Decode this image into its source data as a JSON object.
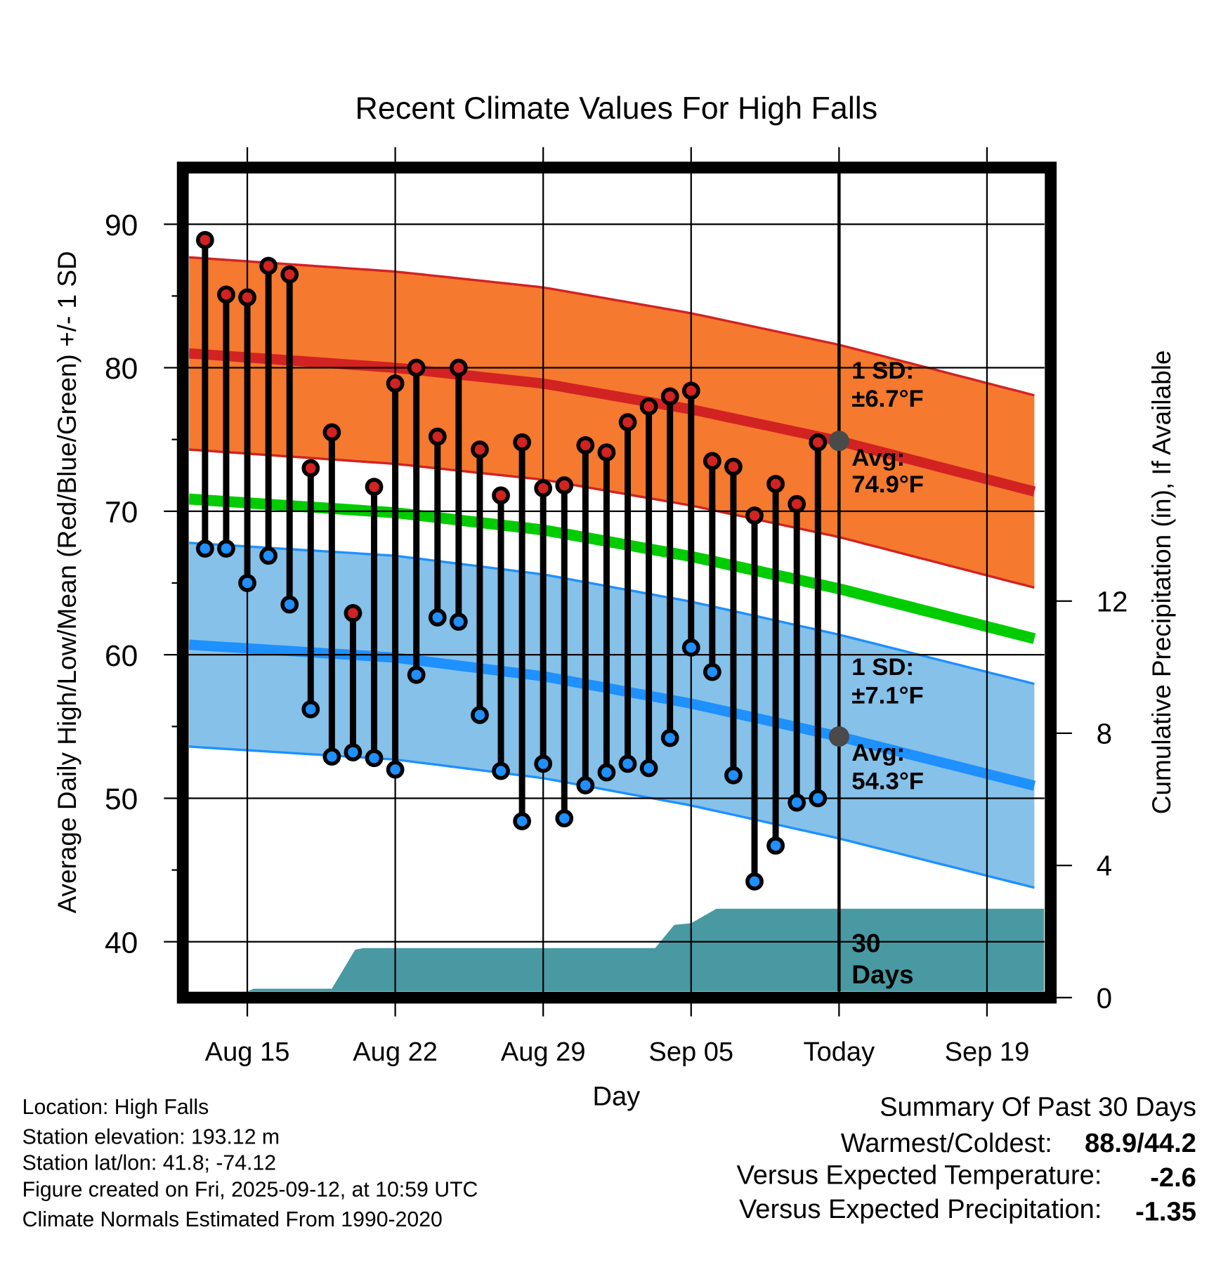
{
  "chart_data": {
    "type": "line",
    "title": "Recent Climate Values For High Falls",
    "xlabel": "Day",
    "ylabel": "Average Daily High/Low/Mean (Red/Blue/Green) +/- 1 SD",
    "ylabel_right": "Cumulative Precipitation (in), If Available",
    "ylim": [
      36.55,
      93
    ],
    "yticks": [
      "90",
      "80",
      "70",
      "60",
      "50",
      "40"
    ],
    "ytick_values": [
      90,
      80,
      70,
      60,
      50,
      40
    ],
    "y2lim": [
      0,
      12
    ],
    "y2ticks": [
      "12",
      "8",
      "4",
      "0"
    ],
    "y2tick_values": [
      12,
      8,
      4,
      0
    ],
    "xticks": [
      {
        "day": 0,
        "label": "Aug 15"
      },
      {
        "day": 7,
        "label": "Aug 22"
      },
      {
        "day": 14,
        "label": "Aug 29"
      },
      {
        "day": 21,
        "label": "Sep 05"
      },
      {
        "day": 28,
        "label": "Today"
      },
      {
        "day": 35,
        "label": "Sep 19"
      }
    ],
    "xrange_days": [
      -2.76,
      37.7
    ],
    "grid": true,
    "today_day": 28,
    "daily": {
      "days": [
        -2,
        -1,
        0,
        1,
        2,
        3,
        4,
        5,
        6,
        7,
        8,
        9,
        10,
        11,
        12,
        13,
        14,
        15,
        16,
        17,
        18,
        19,
        20,
        21,
        22,
        23,
        24,
        25,
        26,
        27
      ],
      "high": [
        88.9,
        85.1,
        84.9,
        87.1,
        86.5,
        73.0,
        75.5,
        62.9,
        71.7,
        78.9,
        80.0,
        75.2,
        80.0,
        74.3,
        71.1,
        74.8,
        71.6,
        71.8,
        74.6,
        74.1,
        76.2,
        77.3,
        78.0,
        78.4,
        73.5,
        73.1,
        69.7,
        71.9,
        70.5,
        74.8
      ],
      "low": [
        67.4,
        67.4,
        65.0,
        66.9,
        63.5,
        56.2,
        52.9,
        53.2,
        52.8,
        52.0,
        58.6,
        62.6,
        62.3,
        55.8,
        51.9,
        48.4,
        52.4,
        48.6,
        50.9,
        51.8,
        52.4,
        52.1,
        54.2,
        60.5,
        58.8,
        51.6,
        44.2,
        46.7,
        49.7,
        50.0
      ]
    },
    "normals": {
      "days": [
        -2.76,
        7,
        14,
        21,
        28,
        37.7
      ],
      "avg_high": [
        81.0,
        80.0,
        78.9,
        77.1,
        74.9,
        71.2
      ],
      "avg_low": [
        60.7,
        59.8,
        58.5,
        56.6,
        54.3,
        50.7
      ],
      "avg_mean": [
        70.85,
        69.9,
        68.7,
        66.85,
        64.6,
        60.95
      ],
      "sd_high": 6.7,
      "sd_low": 7.1
    },
    "precip_cumulative": {
      "days": [
        0,
        0.3,
        4,
        5.1,
        5.5,
        19.3,
        20.2,
        21,
        22.2,
        37.7
      ],
      "inches": [
        0.19,
        0.27,
        0.27,
        1.45,
        1.5,
        1.5,
        2.2,
        2.25,
        2.69,
        2.69
      ]
    },
    "annotations": {
      "high_sd_line1": "1 SD:",
      "high_sd_line2": "±6.7°F",
      "high_avg_line1": "Avg:",
      "high_avg_line2": "74.9°F",
      "low_sd_line1": "1 SD:",
      "low_sd_line2": "±7.1°F",
      "low_avg_line1": "Avg:",
      "low_avg_line2": "54.3°F",
      "precip_line1": "30",
      "precip_line2": "Days"
    },
    "colors": {
      "high_band": "#f5792e",
      "high_line": "#d22222",
      "low_band": "#85c1e9",
      "low_line": "#1e90ff",
      "mean_line": "#00cc00",
      "precip": "#4899a2",
      "annotation": "#4a4a4a"
    }
  },
  "footer": {
    "location": "Location: High Falls",
    "elevation": "Station elevation: 193.12 m",
    "latlon": "Station lat/lon: 41.8; -74.12",
    "created": "Figure created on Fri, 2025-09-12, at 10:59 UTC",
    "normals": "Climate Normals Estimated From 1990-2020"
  },
  "summary": {
    "title": "Summary Of Past 30 Days",
    "warm_cold_label": "Warmest/Coldest:",
    "warm_cold_value": "88.9/44.2",
    "temp_label": "Versus Expected Temperature:",
    "temp_value": "-2.6",
    "temp_color": "#1e90ff",
    "precip_label": "Versus Expected Precipitation:",
    "precip_value": "-1.35",
    "precip_color": "#a0522d"
  }
}
